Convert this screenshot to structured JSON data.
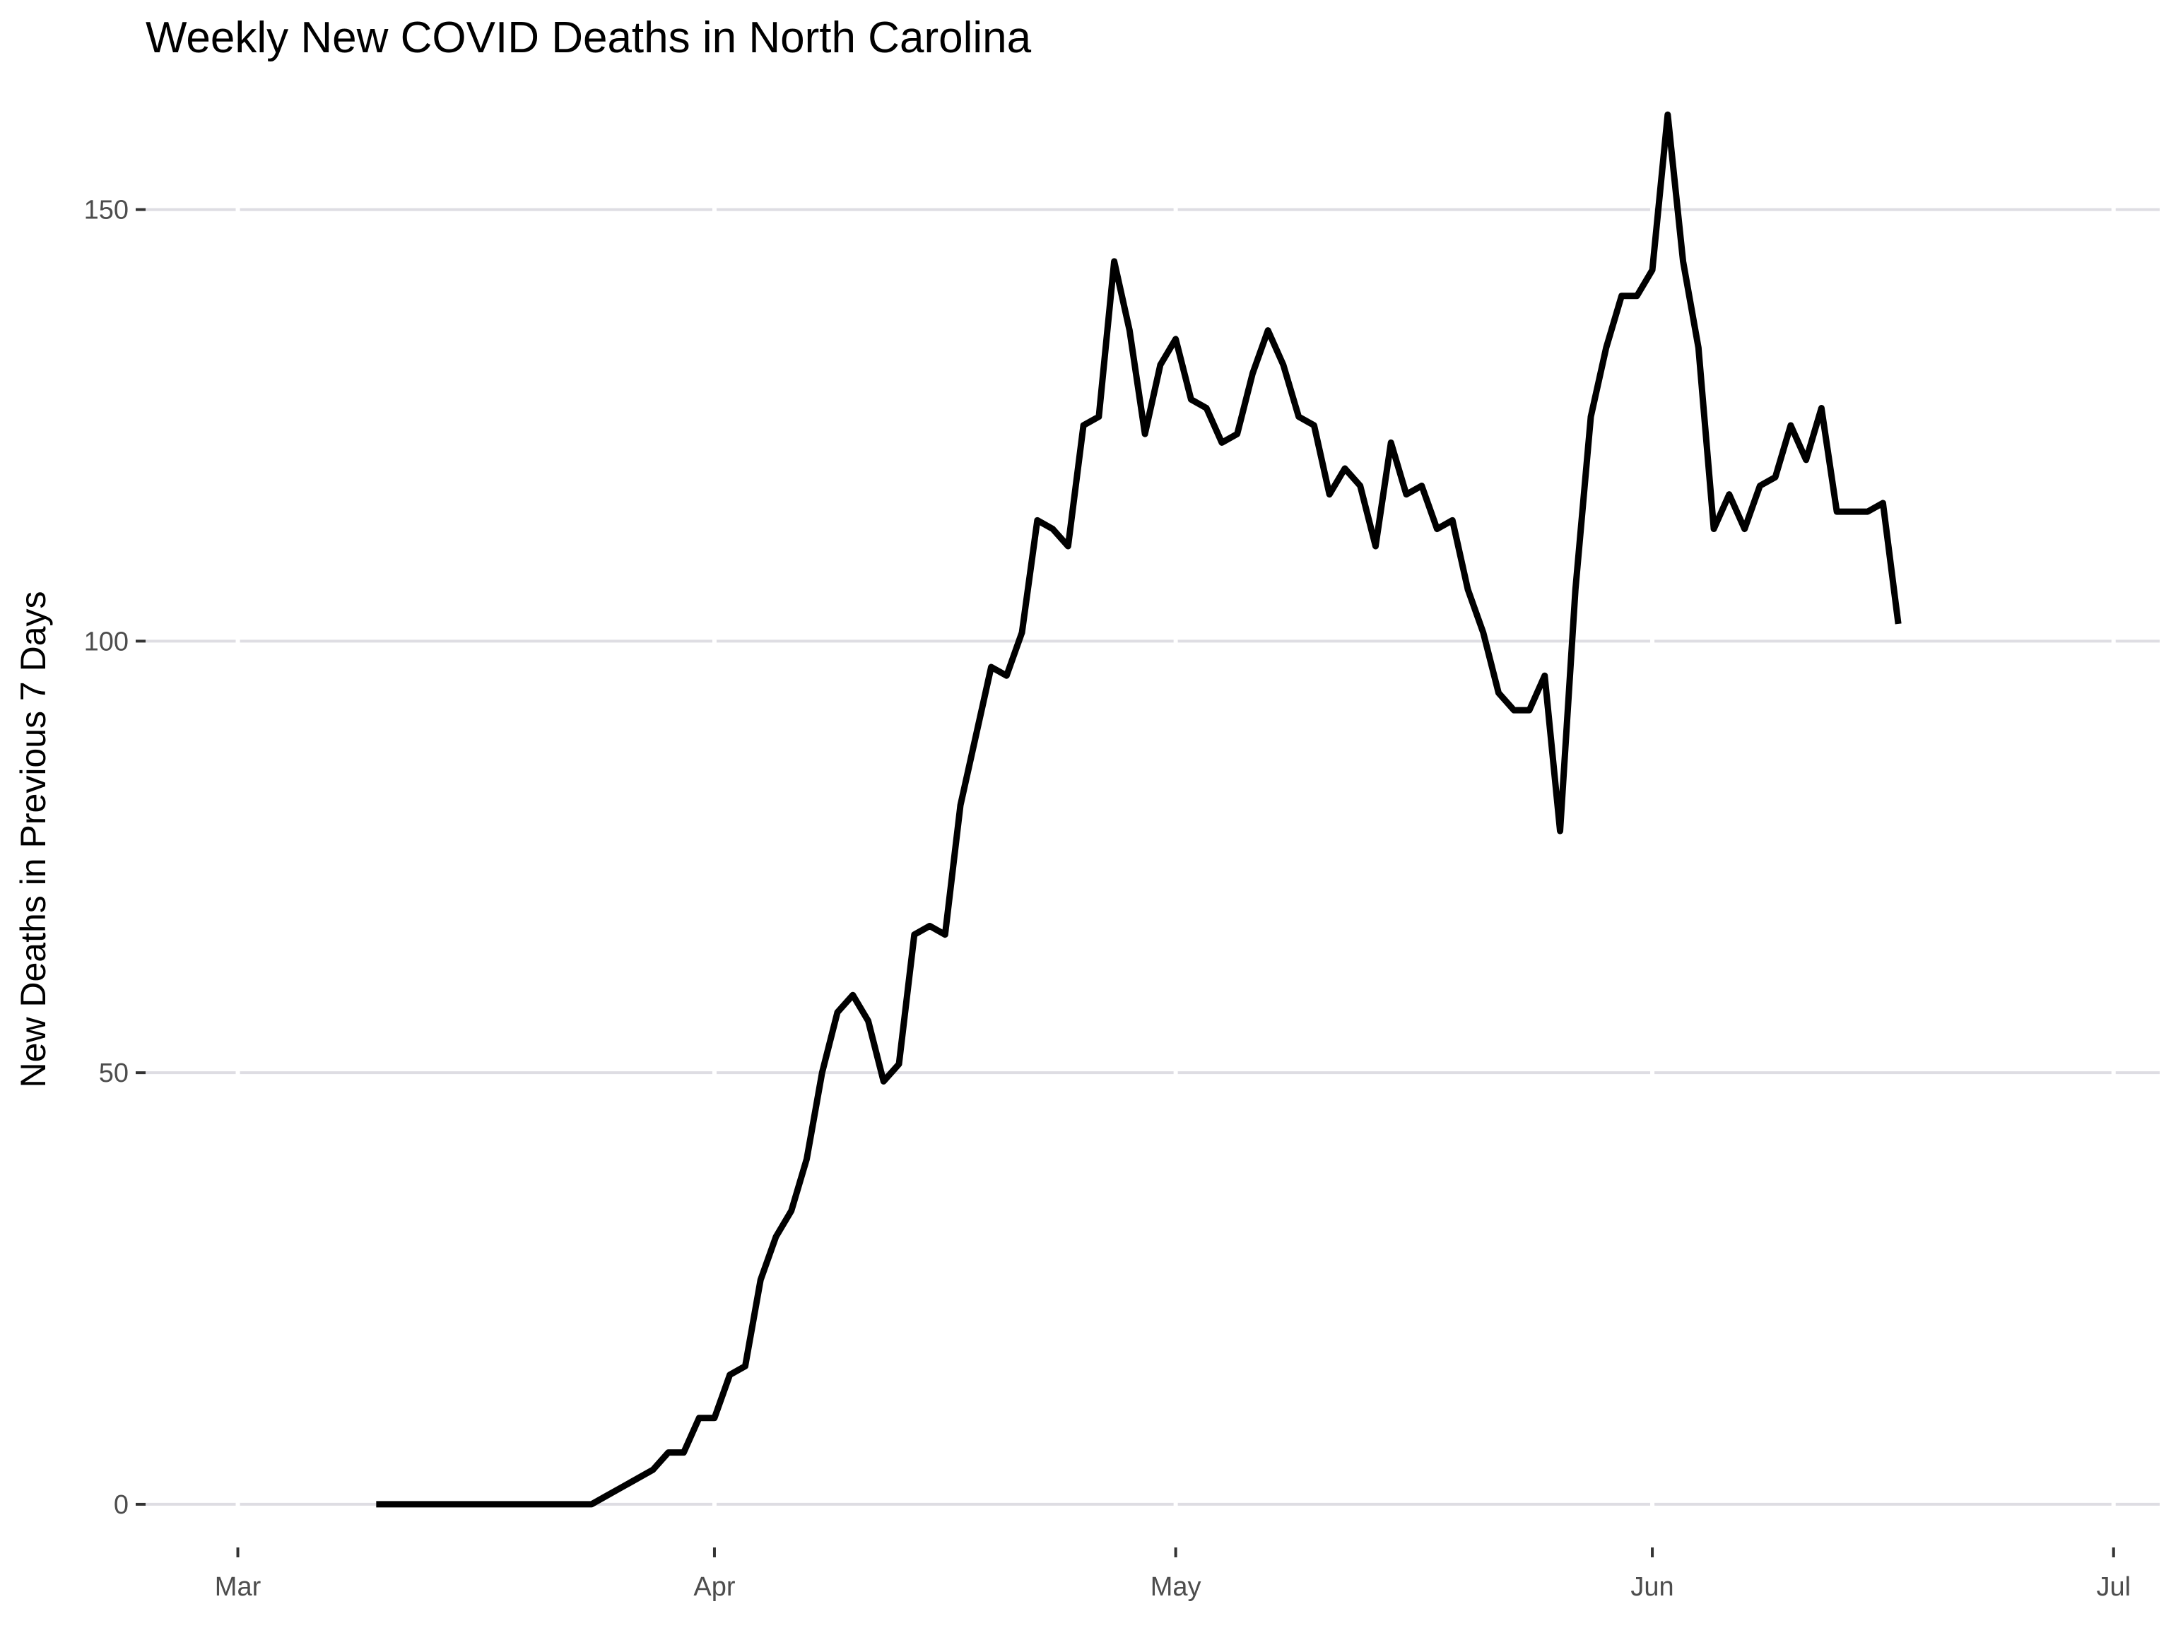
{
  "chart_data": {
    "type": "line",
    "title": "Weekly New COVID Deaths in North Carolina",
    "xlabel": "",
    "ylabel": "New Deaths in Previous 7 Days",
    "grid": true,
    "legend": "none",
    "line_color": "#000000",
    "grid_color": "#dedde3",
    "x_ticks": [
      {
        "date": "2020-03-01",
        "label": "Mar"
      },
      {
        "date": "2020-04-01",
        "label": "Apr"
      },
      {
        "date": "2020-05-01",
        "label": "May"
      },
      {
        "date": "2020-06-01",
        "label": "Jun"
      },
      {
        "date": "2020-07-01",
        "label": "Jul"
      }
    ],
    "y_ticks": [
      {
        "value": 0,
        "label": "0"
      },
      {
        "value": 50,
        "label": "50"
      },
      {
        "value": 100,
        "label": "100"
      },
      {
        "value": 150,
        "label": "150"
      }
    ],
    "xlim": [
      "2020-02-24",
      "2020-07-04"
    ],
    "ylim": [
      -5,
      162
    ],
    "series": [
      {
        "values": [
          [
            "2020-03-10",
            0
          ],
          [
            "2020-03-11",
            0
          ],
          [
            "2020-03-12",
            0
          ],
          [
            "2020-03-13",
            0
          ],
          [
            "2020-03-14",
            0
          ],
          [
            "2020-03-15",
            0
          ],
          [
            "2020-03-16",
            0
          ],
          [
            "2020-03-17",
            0
          ],
          [
            "2020-03-18",
            0
          ],
          [
            "2020-03-19",
            0
          ],
          [
            "2020-03-20",
            0
          ],
          [
            "2020-03-21",
            0
          ],
          [
            "2020-03-22",
            0
          ],
          [
            "2020-03-23",
            0
          ],
          [
            "2020-03-24",
            0
          ],
          [
            "2020-03-25",
            1
          ],
          [
            "2020-03-26",
            2
          ],
          [
            "2020-03-27",
            3
          ],
          [
            "2020-03-28",
            4
          ],
          [
            "2020-03-29",
            6
          ],
          [
            "2020-03-30",
            6
          ],
          [
            "2020-03-31",
            10
          ],
          [
            "2020-04-01",
            10
          ],
          [
            "2020-04-02",
            15
          ],
          [
            "2020-04-03",
            16
          ],
          [
            "2020-04-04",
            26
          ],
          [
            "2020-04-05",
            31
          ],
          [
            "2020-04-06",
            34
          ],
          [
            "2020-04-07",
            40
          ],
          [
            "2020-04-08",
            50
          ],
          [
            "2020-04-09",
            57
          ],
          [
            "2020-04-10",
            59
          ],
          [
            "2020-04-11",
            56
          ],
          [
            "2020-04-12",
            49
          ],
          [
            "2020-04-13",
            51
          ],
          [
            "2020-04-14",
            66
          ],
          [
            "2020-04-15",
            67
          ],
          [
            "2020-04-16",
            66
          ],
          [
            "2020-04-17",
            81
          ],
          [
            "2020-04-18",
            89
          ],
          [
            "2020-04-19",
            97
          ],
          [
            "2020-04-20",
            96
          ],
          [
            "2020-04-21",
            101
          ],
          [
            "2020-04-22",
            114
          ],
          [
            "2020-04-23",
            113
          ],
          [
            "2020-04-24",
            111
          ],
          [
            "2020-04-25",
            125
          ],
          [
            "2020-04-26",
            126
          ],
          [
            "2020-04-27",
            144
          ],
          [
            "2020-04-28",
            136
          ],
          [
            "2020-04-29",
            124
          ],
          [
            "2020-04-30",
            132
          ],
          [
            "2020-05-01",
            135
          ],
          [
            "2020-05-02",
            128
          ],
          [
            "2020-05-03",
            127
          ],
          [
            "2020-05-04",
            123
          ],
          [
            "2020-05-05",
            124
          ],
          [
            "2020-05-06",
            131
          ],
          [
            "2020-05-07",
            136
          ],
          [
            "2020-05-08",
            132
          ],
          [
            "2020-05-09",
            126
          ],
          [
            "2020-05-10",
            125
          ],
          [
            "2020-05-11",
            117
          ],
          [
            "2020-05-12",
            120
          ],
          [
            "2020-05-13",
            118
          ],
          [
            "2020-05-14",
            111
          ],
          [
            "2020-05-15",
            123
          ],
          [
            "2020-05-16",
            117
          ],
          [
            "2020-05-17",
            118
          ],
          [
            "2020-05-18",
            113
          ],
          [
            "2020-05-19",
            114
          ],
          [
            "2020-05-20",
            106
          ],
          [
            "2020-05-21",
            101
          ],
          [
            "2020-05-22",
            94
          ],
          [
            "2020-05-23",
            92
          ],
          [
            "2020-05-24",
            92
          ],
          [
            "2020-05-25",
            96
          ],
          [
            "2020-05-26",
            78
          ],
          [
            "2020-05-27",
            106
          ],
          [
            "2020-05-28",
            126
          ],
          [
            "2020-05-29",
            134
          ],
          [
            "2020-05-30",
            140
          ],
          [
            "2020-05-31",
            140
          ],
          [
            "2020-06-01",
            143
          ],
          [
            "2020-06-02",
            161
          ],
          [
            "2020-06-03",
            144
          ],
          [
            "2020-06-04",
            134
          ],
          [
            "2020-06-05",
            113
          ],
          [
            "2020-06-06",
            117
          ],
          [
            "2020-06-07",
            113
          ],
          [
            "2020-06-08",
            118
          ],
          [
            "2020-06-09",
            119
          ],
          [
            "2020-06-10",
            125
          ],
          [
            "2020-06-11",
            121
          ],
          [
            "2020-06-12",
            127
          ],
          [
            "2020-06-13",
            115
          ],
          [
            "2020-06-14",
            115
          ],
          [
            "2020-06-15",
            115
          ],
          [
            "2020-06-16",
            116
          ],
          [
            "2020-06-17",
            102
          ]
        ]
      }
    ]
  }
}
